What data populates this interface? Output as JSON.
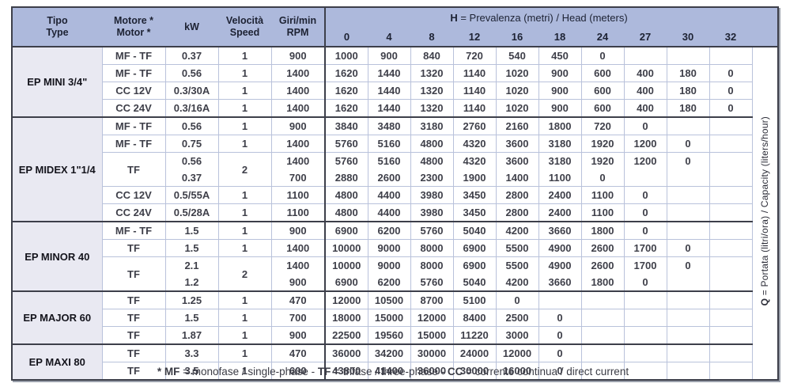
{
  "colors": {
    "header_blue": "#adb9dc",
    "group_column_bg": "#e9e9f2",
    "grid_line": "#b9c2db",
    "dark_border": "#3d3f4a",
    "text_dark": "#1d2233",
    "text_data": "#3e3f49"
  },
  "header": {
    "tipo": {
      "line1": "Tipo",
      "line2": "Type"
    },
    "motore": {
      "line1": "Motore *",
      "line2": "Motor *"
    },
    "kw": "kW",
    "velocita": {
      "line1": "Velocità",
      "line2": "Speed"
    },
    "giri": {
      "line1": "Giri/min",
      "line2": "RPM"
    },
    "h_title": {
      "bold": "H",
      "rest": " = Prevalenza (metri) / Head (meters)"
    },
    "h_ticks": [
      "0",
      "4",
      "8",
      "12",
      "16",
      "18",
      "24",
      "27",
      "30",
      "32"
    ],
    "q_label": {
      "bold": "Q",
      "rest": " = Portata (litri/ora) / Capacity (liters/hour)"
    }
  },
  "sections": [
    {
      "name": "EP MINI 3/4\"",
      "rows": [
        {
          "motor": "MF - TF",
          "kw": "0.37",
          "speed": "1",
          "rpm": "900",
          "h": [
            "1000",
            "900",
            "840",
            "720",
            "540",
            "450",
            "0",
            "",
            "",
            ""
          ]
        },
        {
          "motor": "MF - TF",
          "kw": "0.56",
          "speed": "1",
          "rpm": "1400",
          "h": [
            "1620",
            "1440",
            "1320",
            "1140",
            "1020",
            "900",
            "600",
            "400",
            "180",
            "0"
          ]
        },
        {
          "motor": "CC 12V",
          "kw": "0.3/30A",
          "speed": "1",
          "rpm": "1400",
          "h": [
            "1620",
            "1440",
            "1320",
            "1140",
            "1020",
            "900",
            "600",
            "400",
            "180",
            "0"
          ]
        },
        {
          "motor": "CC 24V",
          "kw": "0.3/16A",
          "speed": "1",
          "rpm": "1400",
          "h": [
            "1620",
            "1440",
            "1320",
            "1140",
            "1020",
            "900",
            "600",
            "400",
            "180",
            "0"
          ]
        }
      ]
    },
    {
      "name": "EP MIDEX 1\"1/4",
      "rows": [
        {
          "motor": "MF - TF",
          "kw": "0.56",
          "speed": "1",
          "rpm": "900",
          "h": [
            "3840",
            "3480",
            "3180",
            "2760",
            "2160",
            "1800",
            "720",
            "0",
            "",
            ""
          ]
        },
        {
          "motor": "MF - TF",
          "kw": "0.75",
          "speed": "1",
          "rpm": "1400",
          "h": [
            "5760",
            "5160",
            "4800",
            "4320",
            "3600",
            "3180",
            "1920",
            "1200",
            "0",
            ""
          ]
        },
        {
          "motor": "TF",
          "kw": [
            "0.56",
            "0.37"
          ],
          "speed": "2",
          "rpm": [
            "1400",
            "700"
          ],
          "double": true,
          "h": [
            [
              "5760",
              "2880"
            ],
            [
              "5160",
              "2600"
            ],
            [
              "4800",
              "2300"
            ],
            [
              "4320",
              "1900"
            ],
            [
              "3600",
              "1400"
            ],
            [
              "3180",
              "1100"
            ],
            [
              "1920",
              "0"
            ],
            [
              "1200",
              ""
            ],
            [
              "0",
              ""
            ],
            [
              "",
              ""
            ]
          ]
        },
        {
          "motor": "CC 12V",
          "kw": "0.5/55A",
          "speed": "1",
          "rpm": "1100",
          "h": [
            "4800",
            "4400",
            "3980",
            "3450",
            "2800",
            "2400",
            "1100",
            "0",
            "",
            ""
          ]
        },
        {
          "motor": "CC 24V",
          "kw": "0.5/28A",
          "speed": "1",
          "rpm": "1100",
          "h": [
            "4800",
            "4400",
            "3980",
            "3450",
            "2800",
            "2400",
            "1100",
            "0",
            "",
            ""
          ]
        }
      ]
    },
    {
      "name": "EP MINOR 40",
      "rows": [
        {
          "motor": "MF - TF",
          "kw": "1.5",
          "speed": "1",
          "rpm": "900",
          "h": [
            "6900",
            "6200",
            "5760",
            "5040",
            "4200",
            "3660",
            "1800",
            "0",
            "",
            ""
          ]
        },
        {
          "motor": "TF",
          "kw": "1.5",
          "speed": "1",
          "rpm": "1400",
          "h": [
            "10000",
            "9000",
            "8000",
            "6900",
            "5500",
            "4900",
            "2600",
            "1700",
            "0",
            ""
          ]
        },
        {
          "motor": "TF",
          "kw": [
            "2.1",
            "1.2"
          ],
          "speed": "2",
          "rpm": [
            "1400",
            "900"
          ],
          "double": true,
          "h": [
            [
              "10000",
              "6900"
            ],
            [
              "9000",
              "6200"
            ],
            [
              "8000",
              "5760"
            ],
            [
              "6900",
              "5040"
            ],
            [
              "5500",
              "4200"
            ],
            [
              "4900",
              "3660"
            ],
            [
              "2600",
              "1800"
            ],
            [
              "1700",
              "0"
            ],
            [
              "0",
              ""
            ],
            [
              "",
              ""
            ]
          ]
        }
      ]
    },
    {
      "name": "EP MAJOR 60",
      "rows": [
        {
          "motor": "TF",
          "kw": "1.25",
          "speed": "1",
          "rpm": "470",
          "h": [
            "12000",
            "10500",
            "8700",
            "5100",
            "0",
            "",
            "",
            "",
            "",
            ""
          ]
        },
        {
          "motor": "TF",
          "kw": "1.5",
          "speed": "1",
          "rpm": "700",
          "h": [
            "18000",
            "15000",
            "12000",
            "8400",
            "2500",
            "0",
            "",
            "",
            "",
            ""
          ]
        },
        {
          "motor": "TF",
          "kw": "1.87",
          "speed": "1",
          "rpm": "900",
          "h": [
            "22500",
            "19560",
            "15000",
            "11220",
            "3000",
            "0",
            "",
            "",
            "",
            ""
          ]
        }
      ]
    },
    {
      "name": "EP MAXI 80",
      "rows": [
        {
          "motor": "TF",
          "kw": "3.3",
          "speed": "1",
          "rpm": "470",
          "h": [
            "36000",
            "34200",
            "30000",
            "24000",
            "12000",
            "0",
            "",
            "",
            "",
            ""
          ]
        },
        {
          "motor": "TF",
          "kw": "3.5",
          "speed": "1",
          "rpm": "600",
          "h": [
            "43800",
            "41400",
            "36000",
            "30000",
            "16000",
            "0",
            "",
            "",
            "",
            ""
          ]
        }
      ]
    }
  ],
  "footnote": {
    "segments": [
      {
        "text": "* MF",
        "bold": true
      },
      {
        "text": " = monofase / single-phase - ",
        "bold": false
      },
      {
        "text": "TF",
        "bold": true
      },
      {
        "text": " = trifase / three-phase - ",
        "bold": false
      },
      {
        "text": "CC",
        "bold": true
      },
      {
        "text": " = corrente continua / direct current",
        "bold": false
      }
    ]
  }
}
